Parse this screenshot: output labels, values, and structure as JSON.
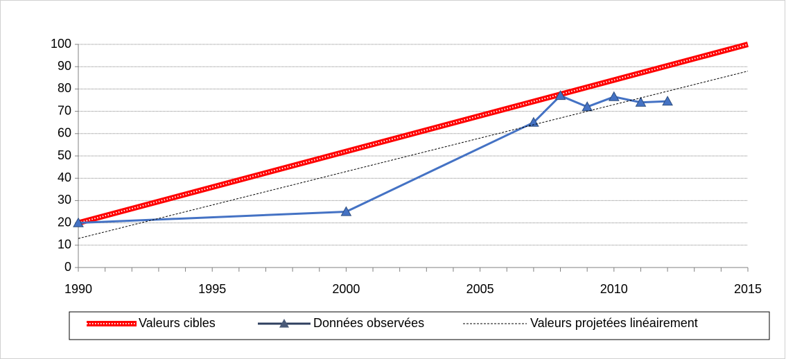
{
  "chart_data": {
    "type": "line",
    "xlim": [
      1990,
      2015
    ],
    "xticks": [
      1990,
      1995,
      2000,
      2005,
      2010,
      2015
    ],
    "ylim": [
      0,
      100
    ],
    "yticks": [
      0,
      10,
      20,
      30,
      40,
      50,
      60,
      70,
      80,
      90,
      100
    ],
    "grid": true,
    "legend": "bottom",
    "series": [
      {
        "name": "Valeurs cibles",
        "color": "#ff0000",
        "x": [
          1990,
          2015
        ],
        "values": [
          20,
          100
        ]
      },
      {
        "name": "Données observées",
        "color": "#4472c4",
        "marker": "triangle",
        "x": [
          1990,
          2000,
          2007,
          2008,
          2009,
          2010,
          2011,
          2012
        ],
        "values": [
          20,
          25,
          65,
          77,
          72,
          76.5,
          74,
          74.5
        ]
      },
      {
        "name": "Valeurs projetées linéairement",
        "color": "#000000",
        "dash": true,
        "x": [
          1990,
          2015
        ],
        "values": [
          13,
          88
        ]
      }
    ]
  }
}
